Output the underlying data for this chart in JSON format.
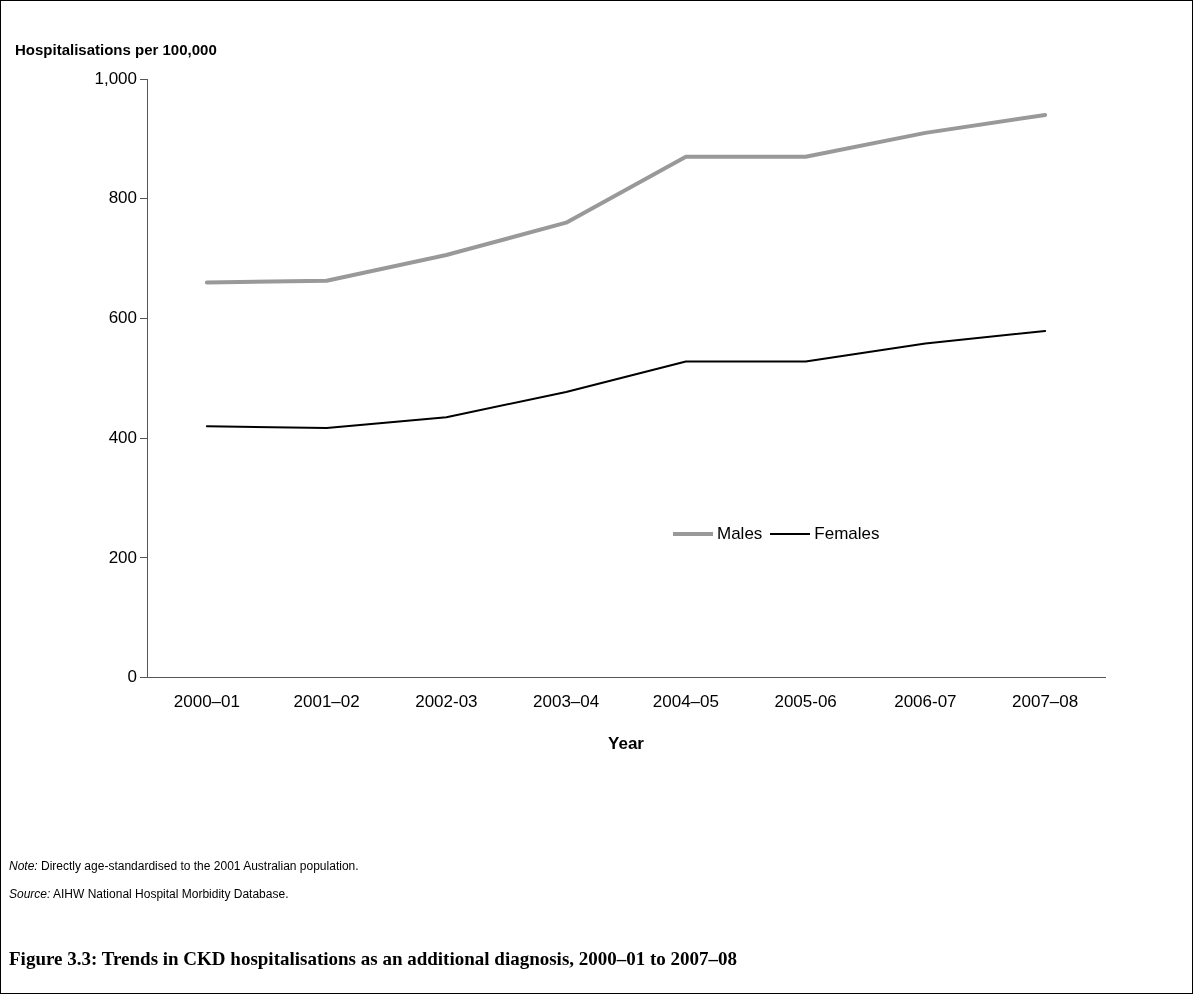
{
  "chart_data": {
    "type": "line",
    "title": "Figure 3.3: Trends in CKD hospitalisations as an additional diagnosis, 2000–01 to 2007–08",
    "ylabel": "Hospitalisations per 100,000",
    "xlabel": "Year",
    "categories": [
      "2000–01",
      "2001–02",
      "2002-03",
      "2003–04",
      "2004–05",
      "2005-06",
      "2006-07",
      "2007–08"
    ],
    "series": [
      {
        "name": "Males",
        "color": "#999999",
        "values": [
          660,
          663,
          706,
          760,
          870,
          870,
          910,
          940
        ]
      },
      {
        "name": "Females",
        "color": "#000000",
        "values": [
          420,
          417,
          435,
          477,
          528,
          528,
          558,
          579
        ]
      }
    ],
    "ylim": [
      0,
      1000
    ],
    "yticks": [
      0,
      {
        "value": 200,
        "label": "200"
      },
      {
        "value": 400,
        "label": "400"
      },
      {
        "value": 600,
        "label": "600"
      },
      {
        "value": 800,
        "label": "800"
      },
      {
        "value": 1000,
        "label": "1,000"
      }
    ],
    "grid": false,
    "legend": "right",
    "marker": "none",
    "line_style": "solid",
    "annotations": [
      "Note: Directly age-standardised to the 2001 Australian population.",
      "Source: AIHW National Hospital Morbidity Database."
    ]
  }
}
